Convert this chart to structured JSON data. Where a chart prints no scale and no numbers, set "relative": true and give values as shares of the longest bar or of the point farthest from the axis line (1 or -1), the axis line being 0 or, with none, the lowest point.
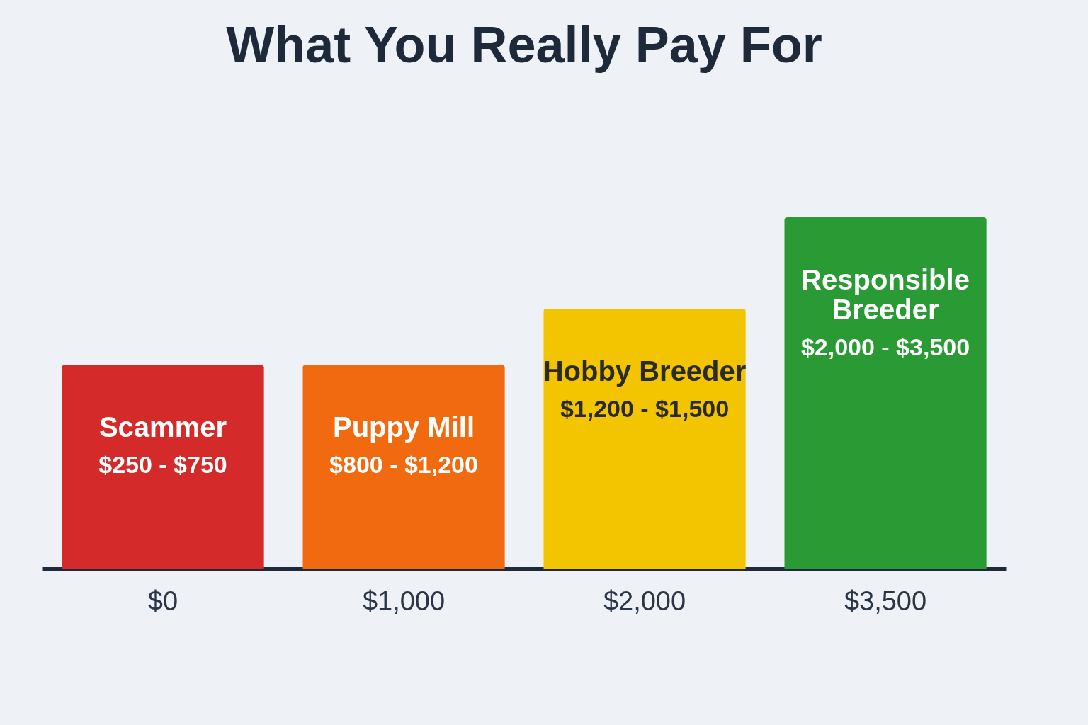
{
  "chart_data": {
    "type": "bar",
    "title": "What You Really Pay For",
    "categories": [
      "Scammer",
      "Puppy Mill",
      "Hobby Breeder",
      "Responsible Breeder"
    ],
    "values": [
      0.58,
      0.58,
      0.74,
      1.0
    ],
    "colors": [
      "#d42a2a",
      "#f26a10",
      "#f2c500",
      "#2a9a35"
    ],
    "relative": true,
    "annotations": [
      "$250 - $750",
      "$800 - $1,200",
      "$1,200 - $1,500",
      "$2,000 - $3,500",
      "$0",
      "$1,000",
      "$2,000",
      "$3,500"
    ]
  }
}
